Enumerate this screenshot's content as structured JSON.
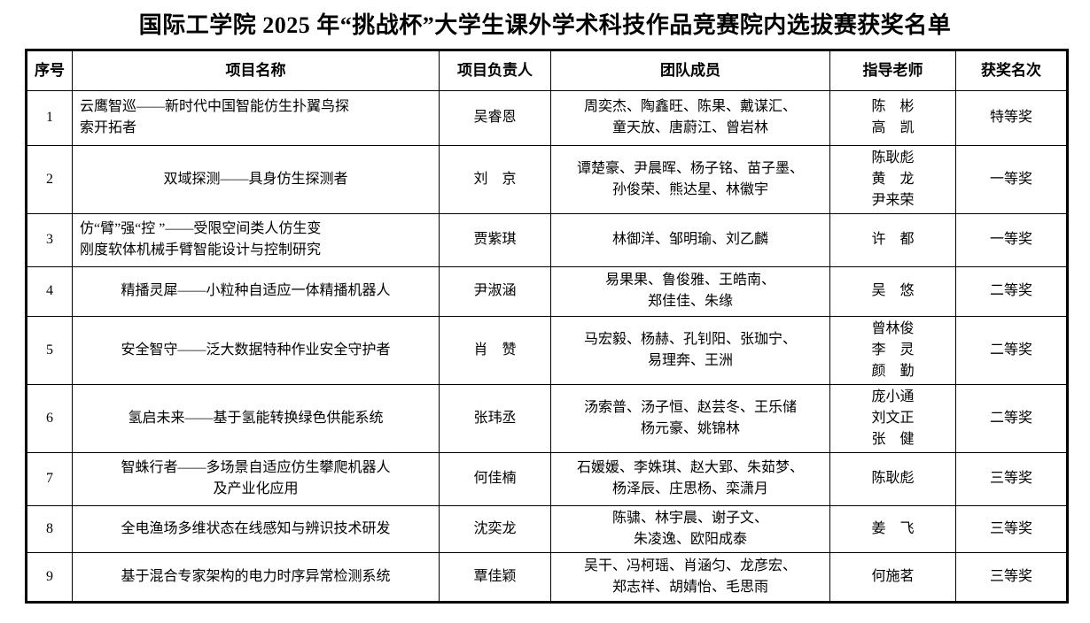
{
  "title": "国际工学院 2025 年“挑战杯”大学生课外学术科技作品竞赛院内选拔赛获奖名单",
  "colors": {
    "background": "#ffffff",
    "border": "#000000",
    "text": "#000000"
  },
  "table": {
    "columns": [
      {
        "label": "序号"
      },
      {
        "label": "项目名称"
      },
      {
        "label": "项目负责人"
      },
      {
        "label": "团队成员"
      },
      {
        "label": "指导老师"
      },
      {
        "label": "获奖名次"
      }
    ],
    "rows": [
      {
        "index": "1",
        "project": "云鹰智巡——新时代中国智能仿生扑翼鸟探\n索开拓者",
        "leader": "吴睿恩",
        "members": "周奕杰、陶鑫旺、陈果、戴谋汇、\n童天放、唐蔚江、曾岩林",
        "advisors": "陈　彬\n高　凯",
        "award": "特等奖"
      },
      {
        "index": "2",
        "project": "双域探测——具身仿生探测者",
        "leader": "刘　京",
        "members": "谭楚豪、尹晨晖、杨子铭、苗子墨、\n孙俊荣、熊达星、林徽宇",
        "advisors": "陈耿彪\n黄　龙\n尹来荣",
        "award": "一等奖"
      },
      {
        "index": "3",
        "project": "仿“臂”强“控 ”——受限空间类人仿生变\n刚度软体机械手臂智能设计与控制研究",
        "leader": "贾紫琪",
        "members": "林御洋、邹明瑜、刘乙麟",
        "advisors": "许　都",
        "award": "一等奖"
      },
      {
        "index": "4",
        "project": "精播灵犀——小粒种自适应一体精播机器人",
        "leader": "尹淑涵",
        "members": "易果果、鲁俊雅、王皓南、\n郑佳佳、朱缘",
        "advisors": "吴　悠",
        "award": "二等奖"
      },
      {
        "index": "5",
        "project": "安全智守——泛大数据特种作业安全守护者",
        "leader": "肖　赞",
        "members": "马宏毅、杨赫、孔钊阳、张珈宁、\n易理奔、王洲",
        "advisors": "曾林俊\n李　灵\n颜　勤",
        "award": "二等奖"
      },
      {
        "index": "6",
        "project": "氢启未来——基于氢能转换绿色供能系统",
        "leader": "张玮丞",
        "members": "汤索普、汤子恒、赵芸冬、王乐储\n杨元豪、姚锦林",
        "advisors": "庞小通\n刘文正\n张　健",
        "award": "二等奖"
      },
      {
        "index": "7",
        "project": "智蛛行者——多场景自适应仿生攀爬机器人\n及产业化应用",
        "leader": "何佳楠",
        "members": "石媛媛、李姝琪、赵大郢、朱茹梦、\n杨泽辰、庄思杨、栾潇月",
        "advisors": "陈耿彪",
        "award": "三等奖"
      },
      {
        "index": "8",
        "project": "全电渔场多维状态在线感知与辨识技术研发",
        "leader": "沈奕龙",
        "members": "陈骕、林宇晨、谢子文、\n朱凌逸、欧阳成泰",
        "advisors": "姜　飞",
        "award": "三等奖"
      },
      {
        "index": "9",
        "project": "基于混合专家架构的电力时序异常检测系统",
        "leader": "覃佳颖",
        "members": "吴干、冯柯瑶、肖涵匀、龙彦宏、\n郑志祥、胡婧怡、毛思雨",
        "advisors": "何施茗",
        "award": "三等奖"
      }
    ]
  }
}
